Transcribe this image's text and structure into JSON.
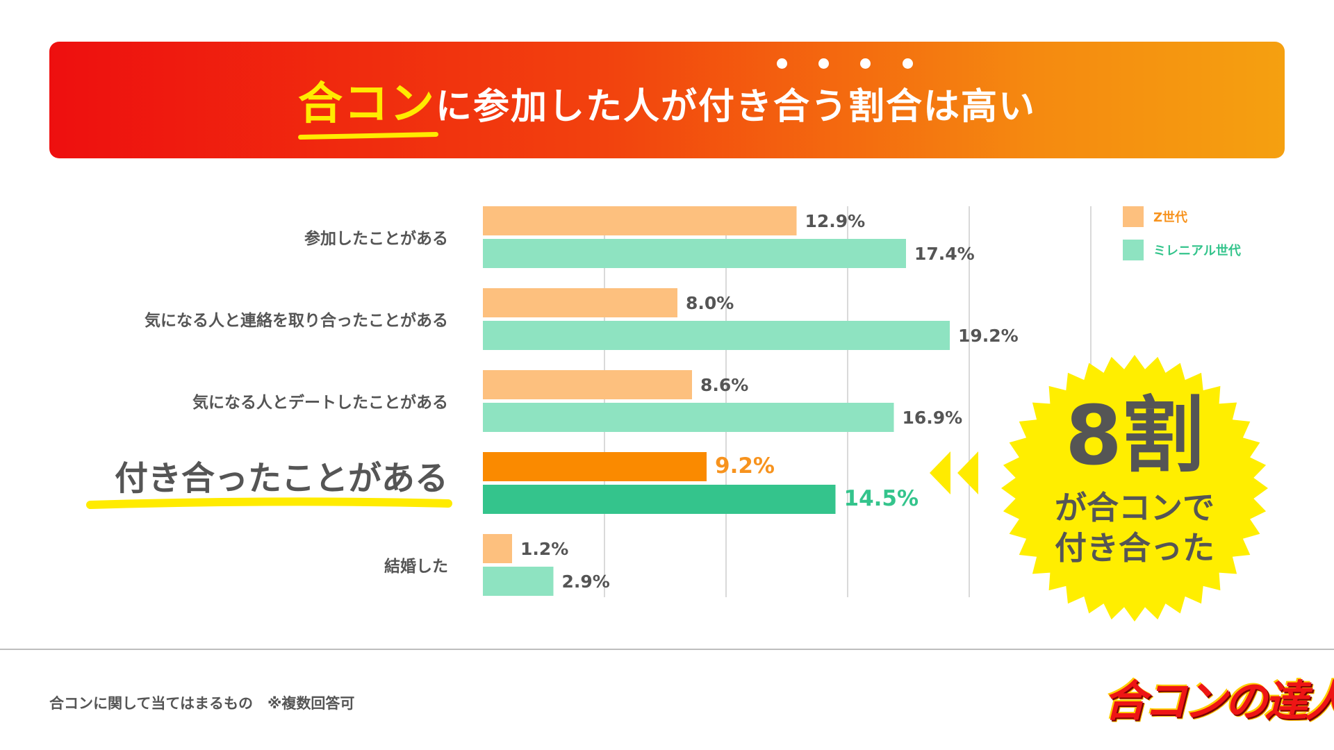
{
  "title": {
    "highlight": "合コン",
    "rest_plain": "に参加した人が",
    "rest_emph": "付き合う",
    "rest_tail": "割合は高い"
  },
  "chart_data": {
    "type": "bar",
    "orientation": "horizontal",
    "categories": [
      "参加したことがある",
      "気になる人と連絡を取り合ったことがある",
      "気になる人とデートしたことがある",
      "付き合ったことがある",
      "結婚した"
    ],
    "highlight_category": "付き合ったことがある",
    "series": [
      {
        "name": "Z世代",
        "values": [
          12.9,
          8.0,
          8.6,
          9.2,
          1.2
        ],
        "color": "#fdc07e",
        "highlight_color": "#fa8a00",
        "label_highlight_color": "#f7931e"
      },
      {
        "name": "ミレニアル世代",
        "values": [
          17.4,
          19.2,
          16.9,
          14.5,
          2.9
        ],
        "color": "#8ee3c1",
        "highlight_color": "#34c48c",
        "label_highlight_color": "#34c48c"
      }
    ],
    "value_labels": [
      [
        "12.9%",
        "8.0%",
        "8.6%",
        "9.2%",
        "1.2%"
      ],
      [
        "17.4%",
        "19.2%",
        "16.9%",
        "14.5%",
        "2.9%"
      ]
    ],
    "xlim": [
      0,
      25
    ],
    "grid": true,
    "legend": "top-right"
  },
  "callout": {
    "big": "8割",
    "line1": "が合コンで",
    "line2": "付き合った",
    "color": "#ffee00"
  },
  "footnote": "合コンに関して当てはまるもの　※複数回答可",
  "logo_text": "合コンの達人",
  "colors": {
    "banner_start": "#ee0f0f",
    "banner_end": "#f5a010",
    "accent_yellow": "#ffeb00",
    "highlight_red": "#e8141a",
    "text_gray": "#555555"
  }
}
